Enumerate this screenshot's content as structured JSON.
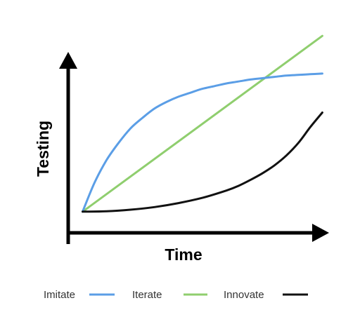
{
  "chart_data": {
    "type": "line",
    "title": "",
    "xlabel": "Time",
    "ylabel": "Testing",
    "grid": false,
    "legend_position": "bottom",
    "x_ticks": false,
    "y_ticks": false,
    "series": [
      {
        "name": "Imitate",
        "color": "#5b9ee6",
        "x": [
          0,
          0.5,
          1,
          1.5,
          2,
          2.5,
          3,
          3.5,
          4,
          4.5,
          5,
          5.5,
          6,
          6.5,
          7,
          7.5,
          8,
          8.5,
          9,
          9.5,
          10
        ],
        "y": [
          0.0,
          2.2,
          3.9,
          5.2,
          6.3,
          7.1,
          7.8,
          8.3,
          8.7,
          9.0,
          9.3,
          9.5,
          9.7,
          9.85,
          10.0,
          10.1,
          10.2,
          10.3,
          10.35,
          10.4,
          10.45
        ]
      },
      {
        "name": "Iterate",
        "color": "#8fce6e",
        "x": [
          0,
          10
        ],
        "y": [
          0.0,
          13.3
        ]
      },
      {
        "name": "Innovate",
        "color": "#111111",
        "x": [
          0,
          1,
          2,
          3,
          4,
          5,
          6,
          6.5,
          7,
          7.5,
          8,
          8.5,
          9,
          9.5,
          10
        ],
        "y": [
          0.0,
          0.03,
          0.15,
          0.35,
          0.65,
          1.05,
          1.6,
          1.95,
          2.4,
          2.9,
          3.5,
          4.25,
          5.2,
          6.4,
          7.5
        ]
      }
    ],
    "xlim": [
      -0.6,
      10.4
    ],
    "ylim": [
      -1.6,
      14.0
    ]
  }
}
